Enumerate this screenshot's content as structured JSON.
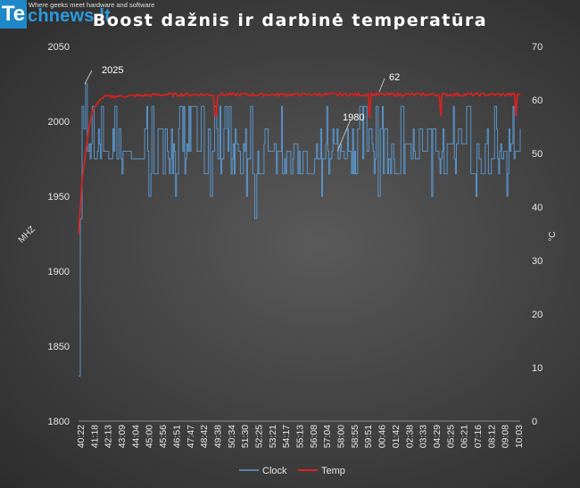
{
  "logo": {
    "letters": "Te",
    "name": "chnews.lt",
    "tagline": "Where geeks meet hardware and software"
  },
  "chart_data": {
    "type": "line",
    "title": "Boost dažnis ir darbinė temperatūra",
    "y_left": {
      "label": "MHZ",
      "min": 1800,
      "max": 2050,
      "ticks": [
        1800,
        1850,
        1900,
        1950,
        2000,
        2050
      ]
    },
    "y_right": {
      "label": "°C",
      "min": 0,
      "max": 70,
      "ticks": [
        0,
        10,
        20,
        30,
        40,
        50,
        60,
        70
      ]
    },
    "x_categories": [
      "40:22",
      "41:18",
      "42:13",
      "43:09",
      "44:04",
      "45:00",
      "45:56",
      "46:51",
      "47:47",
      "48:42",
      "49:38",
      "50:34",
      "51:30",
      "52:25",
      "53:21",
      "54:17",
      "55:13",
      "56:08",
      "57:04",
      "58:00",
      "58:55",
      "59:51",
      "00:46",
      "01:42",
      "02:38",
      "03:33",
      "04:29",
      "05:25",
      "06:21",
      "07:16",
      "08:12",
      "09:08",
      "10:03"
    ],
    "series": [
      {
        "name": "Clock",
        "axis": "left",
        "color": "#5b9bd5",
        "initial": [
          1830,
          1935,
          2010,
          1995,
          2025,
          1980
        ],
        "levels": [
          1965,
          1975,
          1980,
          1985,
          1995,
          2010
        ],
        "dips": [
          [
            0.16,
            1950
          ],
          [
            0.22,
            1950
          ],
          [
            0.3,
            1950
          ],
          [
            0.38,
            1950
          ],
          [
            0.4,
            1935
          ],
          [
            0.55,
            1950
          ],
          [
            0.68,
            1950
          ],
          [
            0.8,
            1950
          ],
          [
            0.9,
            1950
          ],
          [
            0.97,
            1950
          ]
        ]
      },
      {
        "name": "Temp",
        "axis": "right",
        "color": "#e02020",
        "initial": [
          35,
          45,
          50,
          55,
          58,
          59,
          60
        ],
        "plateau": 61,
        "dips": [
          [
            0.31,
            57
          ],
          [
            0.66,
            56.5
          ],
          [
            0.82,
            57
          ],
          [
            0.99,
            57
          ]
        ]
      }
    ],
    "annotations": [
      {
        "text": "2025",
        "series": "Clock",
        "value": 2025
      },
      {
        "text": "62",
        "series": "Temp",
        "value": 62
      },
      {
        "text": "1980",
        "series": "Clock",
        "value": 1980
      }
    ],
    "legend": {
      "position": "bottom",
      "items": [
        "Clock",
        "Temp"
      ]
    },
    "grid": false
  }
}
